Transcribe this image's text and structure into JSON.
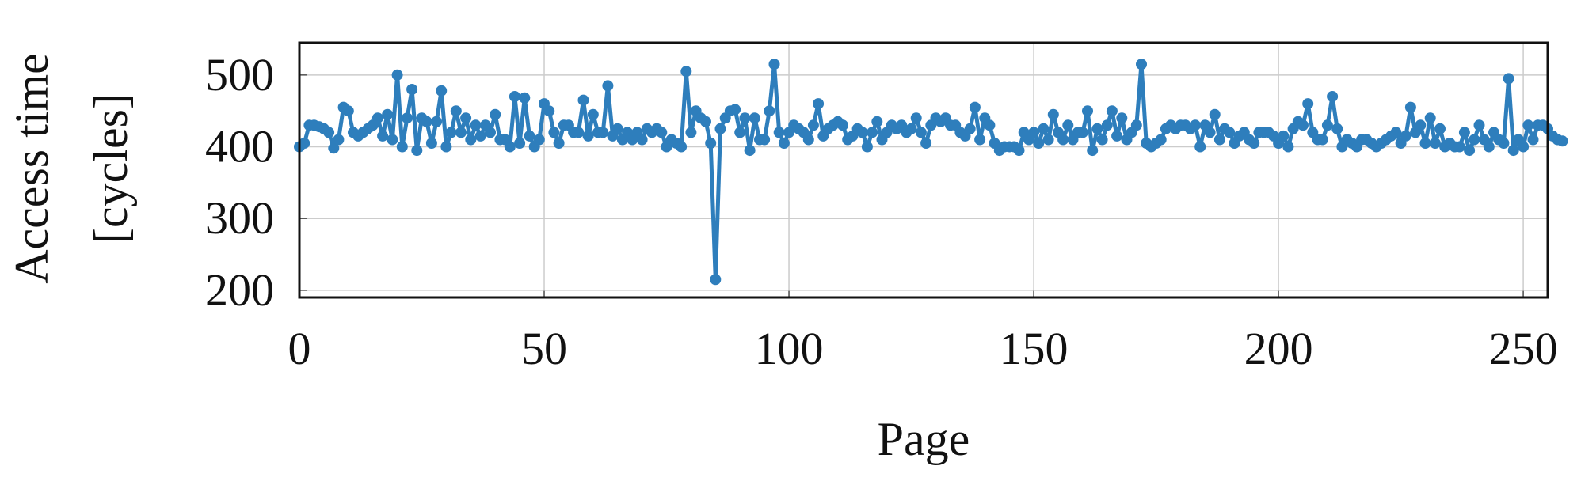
{
  "chart_data": {
    "type": "line",
    "xlabel": "Page",
    "ylabel_lines": [
      "Access time",
      "[cycles]"
    ],
    "xlim": [
      0,
      255
    ],
    "ylim": [
      190,
      545
    ],
    "x_ticks": [
      0,
      50,
      100,
      150,
      200,
      250
    ],
    "y_ticks": [
      200,
      300,
      400,
      500
    ],
    "grid": true,
    "markers": true,
    "color": "#2e7ebc",
    "series": [
      {
        "values": [
          400,
          405,
          430,
          430,
          428,
          425,
          420,
          398,
          410,
          455,
          450,
          420,
          415,
          420,
          425,
          430,
          440,
          415,
          445,
          410,
          500,
          400,
          440,
          480,
          395,
          440,
          435,
          405,
          435,
          478,
          400,
          420,
          450,
          420,
          440,
          410,
          430,
          415,
          430,
          420,
          445,
          410,
          410,
          400,
          470,
          405,
          468,
          415,
          400,
          410,
          460,
          450,
          420,
          405,
          430,
          430,
          420,
          420,
          465,
          415,
          445,
          420,
          420,
          485,
          415,
          425,
          410,
          420,
          410,
          420,
          410,
          425,
          420,
          425,
          420,
          400,
          410,
          405,
          400,
          505,
          420,
          450,
          440,
          435,
          405,
          215,
          425,
          440,
          450,
          452,
          420,
          440,
          395,
          440,
          410,
          410,
          450,
          515,
          420,
          405,
          420,
          430,
          425,
          420,
          410,
          430,
          460,
          415,
          425,
          430,
          435,
          430,
          410,
          415,
          425,
          420,
          400,
          420,
          435,
          410,
          420,
          430,
          425,
          430,
          420,
          425,
          440,
          420,
          405,
          430,
          440,
          435,
          440,
          430,
          430,
          420,
          415,
          425,
          455,
          410,
          440,
          430,
          405,
          395,
          400,
          400,
          400,
          395,
          420,
          410,
          420,
          405,
          425,
          410,
          445,
          420,
          410,
          430,
          410,
          420,
          420,
          450,
          395,
          425,
          410,
          430,
          450,
          415,
          440,
          410,
          420,
          430,
          515,
          405,
          400,
          405,
          410,
          425,
          430,
          425,
          430,
          430,
          425,
          430,
          400,
          430,
          420,
          445,
          410,
          425,
          420,
          405,
          415,
          420,
          410,
          405,
          420,
          420,
          420,
          415,
          405,
          415,
          400,
          425,
          435,
          430,
          460,
          420,
          410,
          410,
          430,
          470,
          425,
          400,
          410,
          405,
          400,
          410,
          410,
          405,
          400,
          405,
          410,
          415,
          420,
          405,
          415,
          455,
          420,
          430,
          405,
          440,
          405,
          425,
          400,
          405,
          400,
          400,
          420,
          395,
          410,
          430,
          410,
          400,
          420,
          410,
          405,
          495,
          395,
          410,
          400,
          430,
          410,
          430,
          430,
          425,
          415,
          410,
          408
        ]
      }
    ]
  }
}
